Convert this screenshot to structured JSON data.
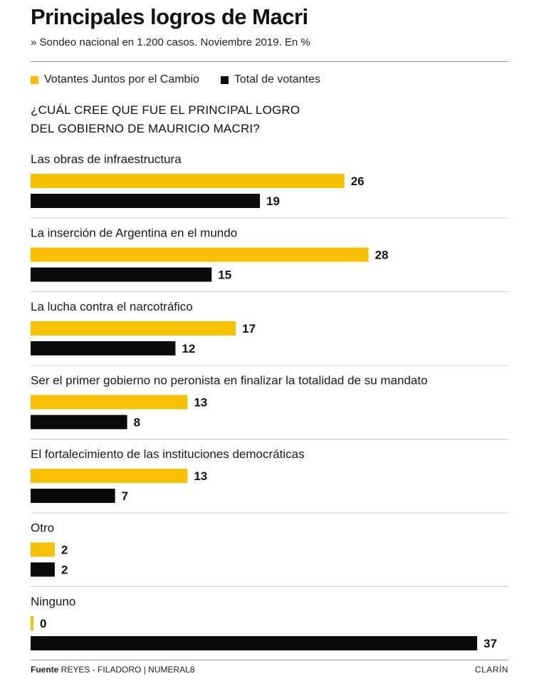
{
  "header": {
    "title": "Principales logros de Macri",
    "subtitle": "» Sondeo nacional en 1.200 casos. Noviembre 2019. En %"
  },
  "legend": {
    "series1": "Votantes Juntos por el Cambio",
    "series2": "Total de votantes"
  },
  "question": {
    "line1": "¿CUÁL CREE QUE FUE EL PRINCIPAL  LOGRO",
    "line2": "DEL GOBIERNO DE MAURICIO MACRI?"
  },
  "footer": {
    "source_label": "Fuente",
    "source_text": " REYES - FILADORO | NUMERAL8",
    "brand": "CLARÍN"
  },
  "colors": {
    "series1": "#f7c100",
    "series2": "#0b0b0b",
    "divider": "#cfcfcf"
  },
  "chart_data": {
    "type": "bar",
    "orientation": "horizontal",
    "unit": "%",
    "categories": [
      "Las obras de infraestructura",
      "La inserción de Argentina en el mundo",
      "La lucha contra el narcotráfico",
      "Ser el primer gobierno no peronista en finalizar la totalidad de su mandato",
      "El fortalecimiento de las instituciones democráticas",
      "Otro",
      "Ninguno"
    ],
    "series": [
      {
        "name": "Votantes Juntos por el Cambio",
        "values": [
          26,
          28,
          17,
          13,
          13,
          2,
          0
        ]
      },
      {
        "name": "Total de votantes",
        "values": [
          19,
          15,
          12,
          8,
          7,
          2,
          37
        ]
      }
    ],
    "xlim": [
      0,
      40
    ],
    "grid": false,
    "legend": "top-left",
    "data_labels": true
  }
}
